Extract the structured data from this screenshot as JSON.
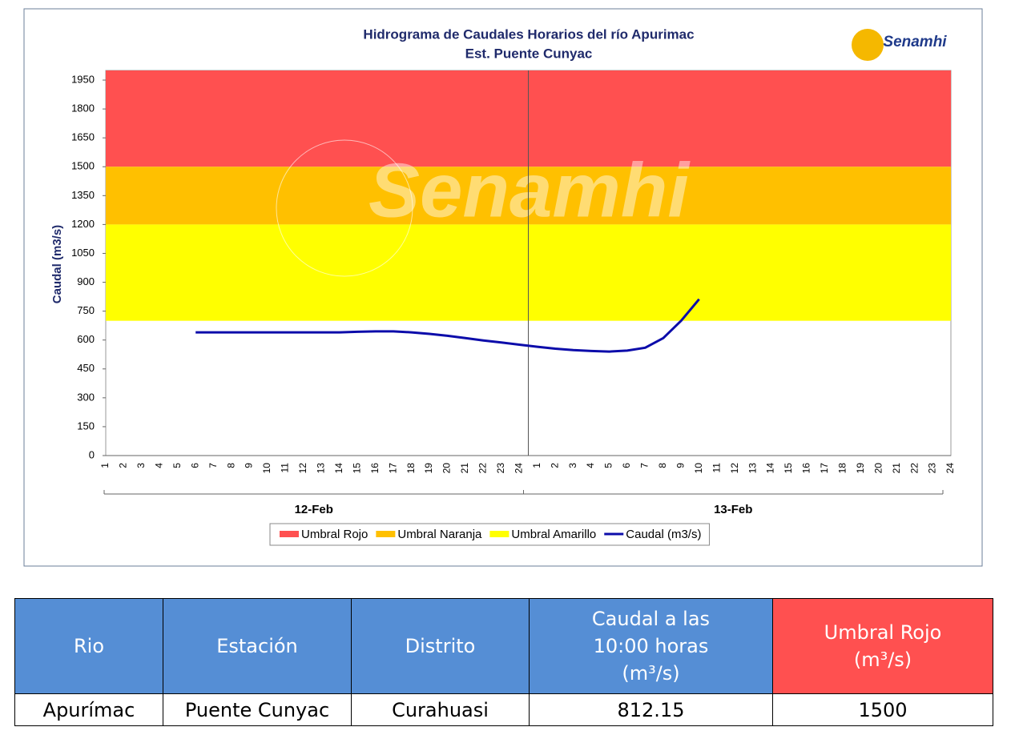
{
  "chart_data": {
    "type": "line",
    "title": "Hidrograma de Caudales Horarios del río Apurimac",
    "subtitle": "Est. Puente Cunyac",
    "logo": "Senamhi",
    "watermark": "Senamhi",
    "y_label": "Caudal  (m3/s)",
    "categories": [
      "1",
      "2",
      "3",
      "4",
      "5",
      "6",
      "7",
      "8",
      "9",
      "10",
      "11",
      "12",
      "13",
      "14",
      "15",
      "16",
      "17",
      "18",
      "19",
      "20",
      "21",
      "22",
      "23",
      "24",
      "1",
      "2",
      "3",
      "4",
      "5",
      "6",
      "7",
      "8",
      "9",
      "10",
      "11",
      "12",
      "13",
      "14",
      "15",
      "16",
      "17",
      "18",
      "19",
      "20",
      "21",
      "22",
      "23",
      "24"
    ],
    "groups": [
      "12-Feb",
      "13-Feb"
    ],
    "bands": [
      {
        "name": "Umbral Rojo",
        "color": "#ff5050",
        "from": 1500,
        "to": 2000
      },
      {
        "name": "Umbral Naranja",
        "color": "#ffc000",
        "from": 1200,
        "to": 1500
      },
      {
        "name": "Umbral Amarillo",
        "color": "#ffff00",
        "from": 700,
        "to": 1200
      }
    ],
    "series": [
      {
        "name": "Caudal (m3/s)",
        "color": "#0c0caa",
        "values": [
          null,
          null,
          null,
          null,
          null,
          640,
          640,
          640,
          640,
          640,
          640,
          640,
          640,
          640,
          643,
          645,
          645,
          640,
          632,
          622,
          610,
          598,
          587,
          576,
          565,
          555,
          548,
          543,
          540,
          545,
          560,
          610,
          700,
          812.15,
          null,
          null,
          null,
          null,
          null,
          null,
          null,
          null,
          null,
          null,
          null,
          null,
          null,
          null
        ]
      }
    ],
    "ylim": [
      0,
      2000
    ],
    "yticks": [
      0,
      150,
      300,
      450,
      600,
      750,
      900,
      1050,
      1200,
      1350,
      1500,
      1650,
      1800,
      1950
    ]
  },
  "table": {
    "header": [
      "Rio",
      "Estación",
      "Distrito",
      "Caudal a las 10:00 horas (m³/s)",
      "Umbral Rojo (m³/s)"
    ],
    "rows": [
      [
        "Apurímac",
        "Puente Cunyac",
        "Curahuasi",
        812.15,
        1500
      ]
    ]
  }
}
